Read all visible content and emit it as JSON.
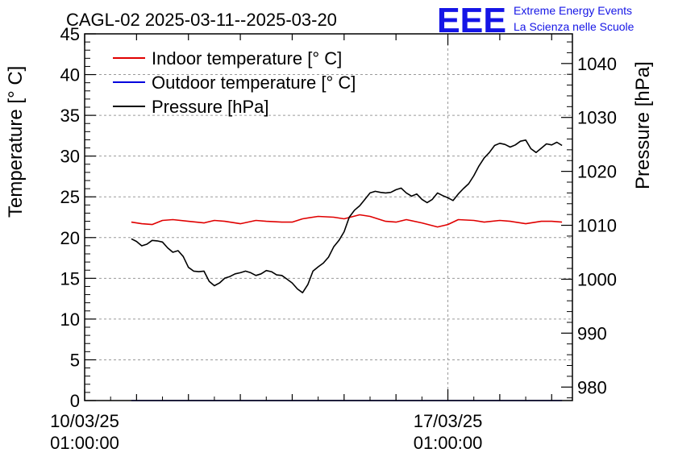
{
  "chart_data": {
    "type": "line",
    "title": "CAGL-02 2025-03-11--2025-03-20",
    "logo": {
      "mark": "EEE",
      "line1": "Extreme Energy Events",
      "line2": "La Scienza nelle Scuole"
    },
    "left_axis": {
      "label": "Temperature [° C]",
      "range": [
        0,
        45
      ],
      "ticks": [
        0,
        5,
        10,
        15,
        20,
        25,
        30,
        35,
        40,
        45
      ]
    },
    "right_axis": {
      "label": "Pressure [hPa]",
      "range": [
        977.5,
        1045.5
      ],
      "ticks": [
        980,
        990,
        1000,
        1010,
        1020,
        1030,
        1040
      ]
    },
    "x_axis": {
      "range_days": [
        0,
        9.4
      ],
      "date_labels": [
        {
          "day": 0,
          "date": "10/03/25",
          "time": "01:00:00"
        },
        {
          "day": 7,
          "date": "17/03/25",
          "time": "01:00:00"
        }
      ],
      "grid_day": 7
    },
    "legend": {
      "placement": "top-left",
      "entries": [
        {
          "label": "Indoor temperature [° C]",
          "color": "#e00000"
        },
        {
          "label": "Outdoor temperature [° C]",
          "color": "#0000dd"
        },
        {
          "label": "Pressure [hPa]",
          "color": "#000000"
        }
      ]
    },
    "grid": true,
    "series": [
      {
        "name": "Indoor temperature [° C]",
        "axis": "left",
        "color": "#e00000",
        "x": [
          0.9,
          1.1,
          1.3,
          1.5,
          1.7,
          2.0,
          2.3,
          2.5,
          2.7,
          3.0,
          3.3,
          3.5,
          3.8,
          4.0,
          4.2,
          4.5,
          4.8,
          5.0,
          5.3,
          5.5,
          5.8,
          6.0,
          6.2,
          6.5,
          6.8,
          7.0,
          7.2,
          7.5,
          7.7,
          8.0,
          8.2,
          8.5,
          8.8,
          9.0,
          9.2
        ],
        "y": [
          21.9,
          21.7,
          21.6,
          22.1,
          22.2,
          22.0,
          21.8,
          22.1,
          22.0,
          21.7,
          22.1,
          22.0,
          21.9,
          21.9,
          22.3,
          22.6,
          22.5,
          22.3,
          22.8,
          22.6,
          22.0,
          21.9,
          22.2,
          21.8,
          21.3,
          21.6,
          22.2,
          22.1,
          21.9,
          22.1,
          22.0,
          21.7,
          22.0,
          22.0,
          21.9
        ]
      },
      {
        "name": "Outdoor temperature [° C]",
        "axis": "left",
        "color": "#0000dd",
        "x": [
          0.9,
          9.2
        ],
        "y": [
          0,
          0
        ]
      },
      {
        "name": "Pressure [hPa]",
        "axis": "right",
        "color": "#000000",
        "x": [
          0.9,
          1.0,
          1.1,
          1.2,
          1.3,
          1.4,
          1.5,
          1.6,
          1.7,
          1.8,
          1.9,
          2.0,
          2.1,
          2.2,
          2.3,
          2.4,
          2.5,
          2.6,
          2.7,
          2.8,
          2.9,
          3.0,
          3.1,
          3.2,
          3.3,
          3.4,
          3.5,
          3.6,
          3.7,
          3.8,
          3.9,
          4.0,
          4.1,
          4.2,
          4.3,
          4.4,
          4.5,
          4.6,
          4.7,
          4.8,
          4.9,
          5.0,
          5.1,
          5.2,
          5.3,
          5.4,
          5.5,
          5.6,
          5.7,
          5.8,
          5.9,
          6.0,
          6.1,
          6.2,
          6.3,
          6.4,
          6.5,
          6.6,
          6.7,
          6.8,
          6.9,
          7.0,
          7.1,
          7.2,
          7.3,
          7.4,
          7.5,
          7.6,
          7.7,
          7.8,
          7.9,
          8.0,
          8.1,
          8.2,
          8.3,
          8.4,
          8.5,
          8.6,
          8.7,
          8.8,
          8.9,
          9.0,
          9.1,
          9.2
        ],
        "y": [
          1007.5,
          1007.0,
          1006.2,
          1006.5,
          1007.2,
          1007.1,
          1006.9,
          1005.8,
          1005.0,
          1005.3,
          1004.2,
          1002.2,
          1001.5,
          1001.4,
          1001.5,
          999.6,
          998.8,
          999.3,
          1000.2,
          1000.5,
          1001.0,
          1001.2,
          1001.5,
          1001.2,
          1000.7,
          1001.0,
          1001.6,
          1001.4,
          1000.8,
          1000.7,
          1000.0,
          999.3,
          998.2,
          997.5,
          999.0,
          1001.5,
          1002.3,
          1003.0,
          1004.1,
          1006.0,
          1007.2,
          1008.8,
          1011.5,
          1012.8,
          1013.6,
          1014.8,
          1016.0,
          1016.3,
          1016.1,
          1016.0,
          1016.1,
          1016.6,
          1016.9,
          1016.0,
          1015.4,
          1015.8,
          1014.8,
          1014.2,
          1014.8,
          1016.0,
          1015.5,
          1015.1,
          1014.6,
          1015.8,
          1016.8,
          1017.7,
          1019.2,
          1021.0,
          1022.5,
          1023.5,
          1024.8,
          1025.2,
          1025.0,
          1024.5,
          1024.9,
          1025.6,
          1025.8,
          1024.2,
          1023.5,
          1024.3,
          1025.1,
          1024.9,
          1025.4,
          1024.8
        ]
      }
    ]
  }
}
